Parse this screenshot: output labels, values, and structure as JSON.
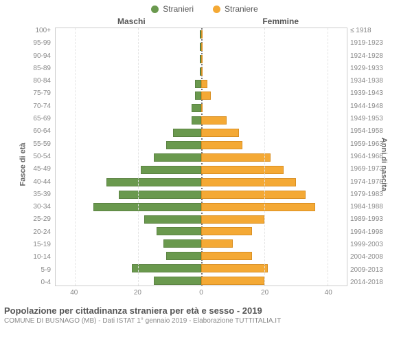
{
  "legend": {
    "male": "Stranieri",
    "female": "Straniere"
  },
  "headers": {
    "male": "Maschi",
    "female": "Femmine"
  },
  "axes": {
    "left_title": "Fasce di età",
    "right_title": "Anni di nascita",
    "x_ticks": [
      40,
      20,
      0,
      20,
      40
    ],
    "xmax": 46
  },
  "colors": {
    "male_fill": "#6a994e",
    "male_stroke": "#5a8241",
    "female_fill": "#f4a935",
    "female_stroke": "#d98f22",
    "grid": "#e3e3e3",
    "center": "#777777",
    "bg": "#ffffff"
  },
  "age_groups": [
    {
      "age": "100+",
      "year": "≤ 1918",
      "m": 0,
      "f": 0
    },
    {
      "age": "95-99",
      "year": "1919-1923",
      "m": 0,
      "f": 0
    },
    {
      "age": "90-94",
      "year": "1924-1928",
      "m": 0,
      "f": 0
    },
    {
      "age": "85-89",
      "year": "1929-1933",
      "m": 0,
      "f": 0
    },
    {
      "age": "80-84",
      "year": "1934-1938",
      "m": 2,
      "f": 2
    },
    {
      "age": "75-79",
      "year": "1939-1943",
      "m": 2,
      "f": 3
    },
    {
      "age": "70-74",
      "year": "1944-1948",
      "m": 3,
      "f": 0
    },
    {
      "age": "65-69",
      "year": "1949-1953",
      "m": 3,
      "f": 8
    },
    {
      "age": "60-64",
      "year": "1954-1958",
      "m": 9,
      "f": 12
    },
    {
      "age": "55-59",
      "year": "1959-1963",
      "m": 11,
      "f": 13
    },
    {
      "age": "50-54",
      "year": "1964-1968",
      "m": 15,
      "f": 22
    },
    {
      "age": "45-49",
      "year": "1969-1973",
      "m": 19,
      "f": 26
    },
    {
      "age": "40-44",
      "year": "1974-1978",
      "m": 30,
      "f": 30
    },
    {
      "age": "35-39",
      "year": "1979-1983",
      "m": 26,
      "f": 33
    },
    {
      "age": "30-34",
      "year": "1984-1988",
      "m": 34,
      "f": 36
    },
    {
      "age": "25-29",
      "year": "1989-1993",
      "m": 18,
      "f": 20
    },
    {
      "age": "20-24",
      "year": "1994-1998",
      "m": 14,
      "f": 16
    },
    {
      "age": "15-19",
      "year": "1999-2003",
      "m": 12,
      "f": 10
    },
    {
      "age": "10-14",
      "year": "2004-2008",
      "m": 11,
      "f": 16
    },
    {
      "age": "5-9",
      "year": "2009-2013",
      "m": 22,
      "f": 21
    },
    {
      "age": "0-4",
      "year": "2014-2018",
      "m": 15,
      "f": 20
    }
  ],
  "footer": {
    "title": "Popolazione per cittadinanza straniera per età e sesso - 2019",
    "subtitle": "COMUNE DI BUSNAGO (MB) - Dati ISTAT 1° gennaio 2019 - Elaborazione TUTTITALIA.IT"
  }
}
